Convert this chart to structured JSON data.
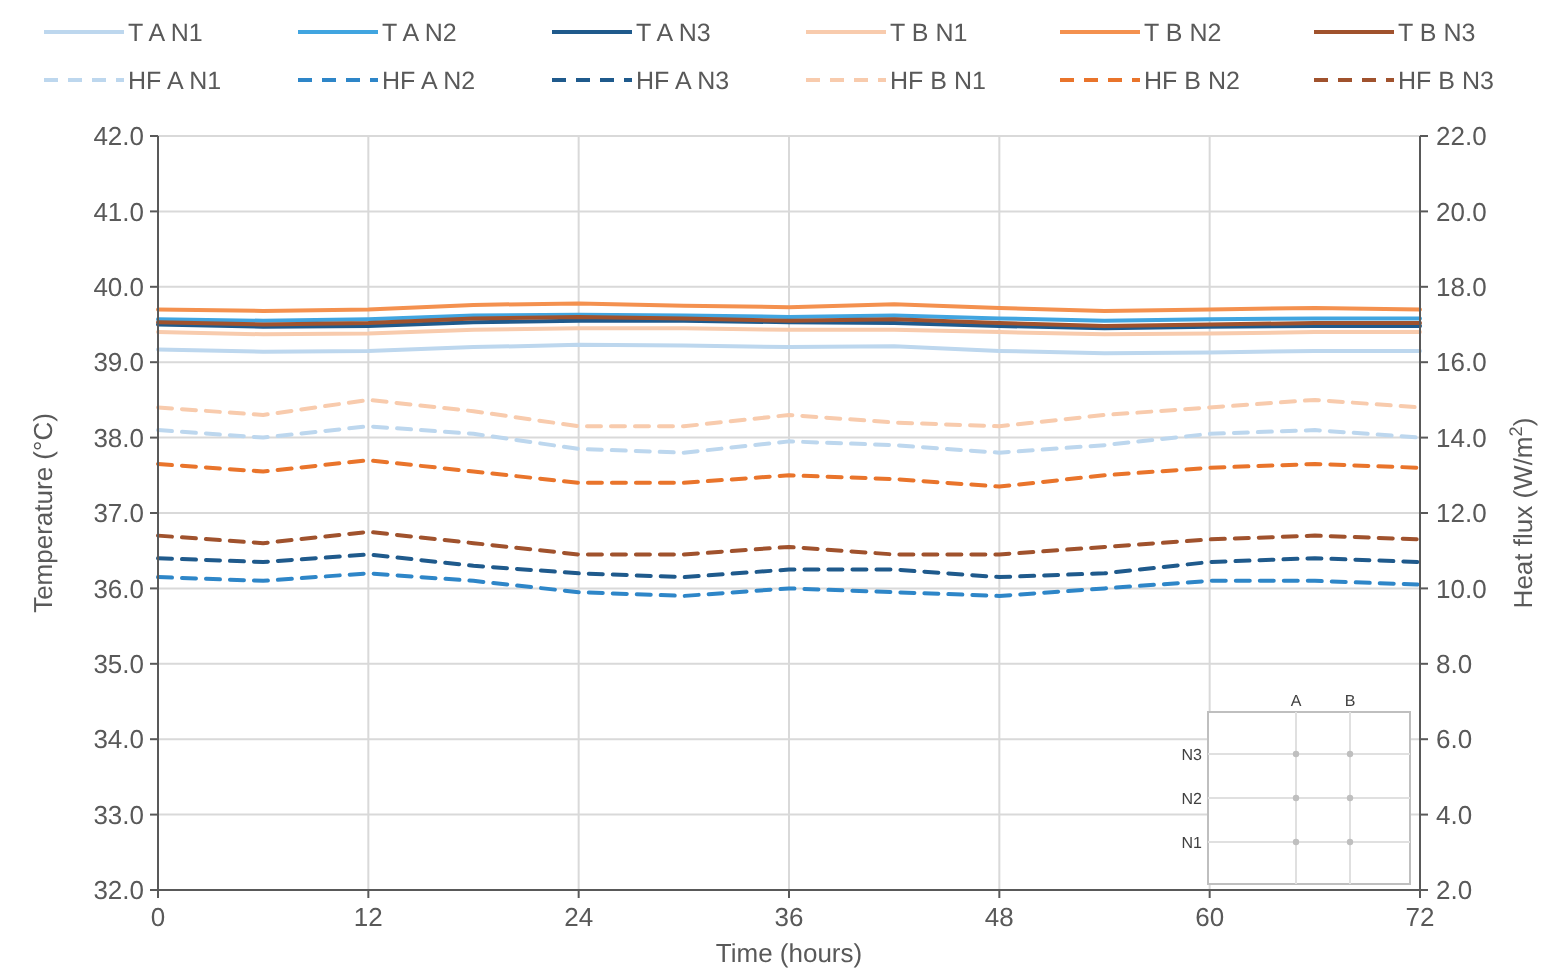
{
  "chart_data": {
    "type": "line",
    "xlabel": "Time (hours)",
    "ylabel": "Temperature (°C)",
    "y2label": "Heat flux (W/m$^{2}$)",
    "x": [
      0,
      6,
      12,
      18,
      24,
      30,
      36,
      42,
      48,
      54,
      60,
      66,
      72
    ],
    "xlim": [
      0,
      72
    ],
    "xticks": [
      0,
      12,
      24,
      36,
      48,
      60,
      72
    ],
    "ylim": [
      32,
      42
    ],
    "yticks": [
      {
        "value": 32,
        "label": "32.0"
      },
      {
        "value": 33,
        "label": "33.0"
      },
      {
        "value": 34,
        "label": "34.0"
      },
      {
        "value": 35,
        "label": "35.0"
      },
      {
        "value": 36,
        "label": "36.0"
      },
      {
        "value": 37,
        "label": "37.0"
      },
      {
        "value": 38,
        "label": "38.0"
      },
      {
        "value": 39,
        "label": "39.0"
      },
      {
        "value": 40,
        "label": "40.0"
      },
      {
        "value": 41,
        "label": "41.0"
      },
      {
        "value": 42,
        "label": "42.0"
      }
    ],
    "y2lim": [
      2,
      22
    ],
    "y2ticks": [
      {
        "value": 2,
        "label": "2.0"
      },
      {
        "value": 4,
        "label": "4.0"
      },
      {
        "value": 6,
        "label": "6.0"
      },
      {
        "value": 8,
        "label": "8.0"
      },
      {
        "value": 10,
        "label": "10.0"
      },
      {
        "value": 12,
        "label": "12.0"
      },
      {
        "value": 14,
        "label": "14.0"
      },
      {
        "value": 16,
        "label": "16.0"
      },
      {
        "value": 18,
        "label": "18.0"
      },
      {
        "value": 20,
        "label": "20.0"
      },
      {
        "value": 22,
        "label": "22.0"
      }
    ],
    "grid": true,
    "legend": "top",
    "annotations": [
      "A",
      "B",
      "N3",
      "N2",
      "N1"
    ],
    "series": [
      {
        "name": "T A N1",
        "color": "#bdd7ee",
        "line_style": "solid",
        "values": [
          39.17,
          39.14,
          39.15,
          39.2,
          39.23,
          39.22,
          39.2,
          39.21,
          39.15,
          39.12,
          39.13,
          39.15,
          39.15
        ]
      },
      {
        "name": "T A N2",
        "color": "#41a5e0",
        "line_style": "solid",
        "values": [
          39.57,
          39.55,
          39.57,
          39.62,
          39.63,
          39.62,
          39.6,
          39.62,
          39.58,
          39.55,
          39.57,
          39.58,
          39.58
        ]
      },
      {
        "name": "T A N3",
        "color": "#1f5a8c",
        "line_style": "solid",
        "values": [
          39.5,
          39.47,
          39.48,
          39.53,
          39.55,
          39.55,
          39.53,
          39.52,
          39.48,
          39.45,
          39.47,
          39.48,
          39.48
        ]
      },
      {
        "name": "T B N1",
        "color": "#f8cbad",
        "line_style": "solid",
        "values": [
          39.4,
          39.37,
          39.38,
          39.43,
          39.45,
          39.45,
          39.43,
          39.43,
          39.4,
          39.37,
          39.38,
          39.4,
          39.4
        ]
      },
      {
        "name": "T B N2",
        "color": "#f4914f",
        "line_style": "solid",
        "values": [
          39.7,
          39.68,
          39.7,
          39.76,
          39.78,
          39.75,
          39.73,
          39.77,
          39.72,
          39.68,
          39.7,
          39.72,
          39.7
        ]
      },
      {
        "name": "T B N3",
        "color": "#a0522d",
        "line_style": "solid",
        "values": [
          39.53,
          39.5,
          39.52,
          39.58,
          39.6,
          39.58,
          39.55,
          39.57,
          39.52,
          39.48,
          39.5,
          39.52,
          39.52
        ]
      },
      {
        "name": "HF A N1",
        "color": "#bdd7ee",
        "line_style": "dashed",
        "axis": "y2",
        "values": [
          14.2,
          14.0,
          14.3,
          14.1,
          13.7,
          13.6,
          13.9,
          13.8,
          13.6,
          13.8,
          14.1,
          14.2,
          14.0
        ]
      },
      {
        "name": "HF A N2",
        "color": "#2e86c8",
        "line_style": "dashed",
        "axis": "y2",
        "values": [
          10.3,
          10.2,
          10.4,
          10.2,
          9.9,
          9.8,
          10.0,
          9.9,
          9.8,
          10.0,
          10.2,
          10.2,
          10.1
        ]
      },
      {
        "name": "HF A N3",
        "color": "#1f5a8c",
        "line_style": "dashed",
        "axis": "y2",
        "values": [
          10.8,
          10.7,
          10.9,
          10.6,
          10.4,
          10.3,
          10.5,
          10.5,
          10.3,
          10.4,
          10.7,
          10.8,
          10.7
        ]
      },
      {
        "name": "HF B N1",
        "color": "#f8cbad",
        "line_style": "dashed",
        "axis": "y2",
        "values": [
          14.8,
          14.6,
          15.0,
          14.7,
          14.3,
          14.3,
          14.6,
          14.4,
          14.3,
          14.6,
          14.8,
          15.0,
          14.8
        ]
      },
      {
        "name": "HF B N2",
        "color": "#e9742b",
        "line_style": "dashed",
        "axis": "y2",
        "values": [
          13.3,
          13.1,
          13.4,
          13.1,
          12.8,
          12.8,
          13.0,
          12.9,
          12.7,
          13.0,
          13.2,
          13.3,
          13.2
        ]
      },
      {
        "name": "HF B N3",
        "color": "#a0522d",
        "line_style": "dashed",
        "axis": "y2",
        "values": [
          11.4,
          11.2,
          11.5,
          11.2,
          10.9,
          10.9,
          11.1,
          10.9,
          10.9,
          11.1,
          11.3,
          11.4,
          11.3
        ]
      }
    ]
  }
}
